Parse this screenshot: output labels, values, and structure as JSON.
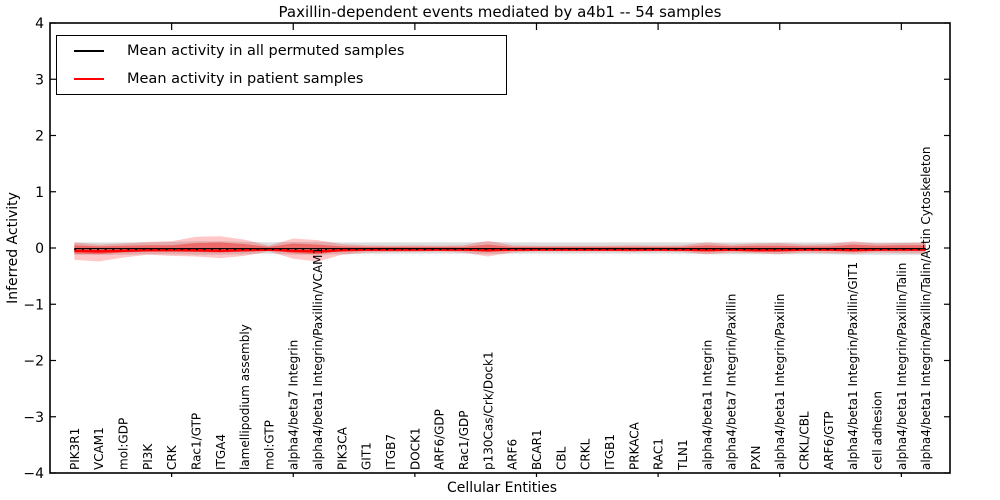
{
  "figure": {
    "title": "Paxillin-dependent events mediated by a4b1 -- 54 samples",
    "background": "#ffffff"
  },
  "chart_data": {
    "type": "line",
    "title": "Paxillin-dependent events mediated by a4b1 -- 54 samples",
    "xlabel": "Cellular Entities",
    "ylabel": "Inferred Activity",
    "xlim": [
      0,
      37
    ],
    "ylim": [
      -4,
      4
    ],
    "yticks": [
      -4,
      -3,
      -2,
      -1,
      0,
      1,
      2,
      3,
      4
    ],
    "xticks": [
      5,
      10,
      15,
      20,
      25,
      30,
      35
    ],
    "grid": false,
    "legend_position": "upper left",
    "legend": [
      {
        "label": "Mean activity in all permuted samples",
        "color": "#000000"
      },
      {
        "label": "Mean activity in patient samples",
        "color": "#ff0000"
      }
    ],
    "categories": [
      "PIK3R1",
      "VCAM1",
      "mol:GDP",
      "PI3K",
      "CRK",
      "Rac1/GTP",
      "ITGA4",
      "lamellipodium assembly",
      "mol:GTP",
      "alpha4/beta7 Integrin",
      "alpha4/beta1 Integrin/Paxillin/VCAM1",
      "PIK3CA",
      "GIT1",
      "ITGB7",
      "DOCK1",
      "ARF6/GDP",
      "Rac1/GDP",
      "p130Cas/Crk/Dock1",
      "ARF6",
      "BCAR1",
      "CBL",
      "CRKL",
      "ITGB1",
      "PRKACA",
      "RAC1",
      "TLN1",
      "alpha4/beta1 Integrin",
      "alpha4/beta7 Integrin/Paxillin",
      "PXN",
      "alpha4/beta1 Integrin/Paxillin",
      "CRKL/CBL",
      "ARF6/GTP",
      "alpha4/beta1 Integrin/Paxillin/GIT1",
      "cell adhesion",
      "alpha4/beta1 Integrin/Paxillin/Talin",
      "alpha4/beta1 Integrin/Paxillin/Talin/Actin Cytoskeleton"
    ],
    "series": [
      {
        "name": "Mean activity in all permuted samples",
        "color": "#000000",
        "line_style": "dotted",
        "values": [
          -0.01,
          -0.01,
          -0.01,
          -0.01,
          -0.01,
          -0.01,
          -0.01,
          -0.01,
          -0.01,
          -0.01,
          -0.01,
          -0.01,
          -0.01,
          -0.01,
          -0.01,
          -0.01,
          -0.01,
          -0.01,
          -0.01,
          -0.01,
          -0.01,
          -0.01,
          -0.01,
          -0.01,
          -0.01,
          -0.01,
          -0.01,
          -0.01,
          -0.01,
          -0.01,
          -0.01,
          -0.01,
          -0.01,
          -0.01,
          -0.01,
          -0.01
        ]
      },
      {
        "name": "Mean activity in patient samples",
        "color": "#ff0000",
        "line_style": "solid",
        "values": [
          -0.05,
          -0.06,
          -0.05,
          -0.04,
          -0.04,
          -0.04,
          -0.05,
          -0.04,
          -0.03,
          -0.05,
          -0.06,
          -0.04,
          -0.03,
          -0.03,
          -0.03,
          -0.03,
          -0.03,
          -0.04,
          -0.03,
          -0.03,
          -0.03,
          -0.03,
          -0.03,
          -0.03,
          -0.03,
          -0.03,
          -0.04,
          -0.03,
          -0.04,
          -0.04,
          -0.03,
          -0.03,
          -0.04,
          -0.03,
          -0.03,
          -0.03
        ]
      }
    ],
    "bands": [
      {
        "name": "permuted-range-band",
        "color": "rgba(130,130,130,0.28)",
        "upper": [
          0.1,
          0.1,
          0.1,
          0.1,
          0.11,
          0.12,
          0.12,
          0.11,
          0.1,
          0.11,
          0.11,
          0.1,
          0.1,
          0.1,
          0.1,
          0.1,
          0.1,
          0.11,
          0.1,
          0.1,
          0.1,
          0.1,
          0.1,
          0.1,
          0.1,
          0.1,
          0.1,
          0.1,
          0.1,
          0.1,
          0.1,
          0.1,
          0.1,
          0.1,
          0.1,
          0.1
        ],
        "lower": [
          -0.12,
          -0.12,
          -0.12,
          -0.11,
          -0.11,
          -0.12,
          -0.12,
          -0.11,
          -0.1,
          -0.12,
          -0.12,
          -0.11,
          -0.1,
          -0.1,
          -0.1,
          -0.1,
          -0.1,
          -0.11,
          -0.1,
          -0.1,
          -0.1,
          -0.1,
          -0.1,
          -0.1,
          -0.1,
          -0.1,
          -0.11,
          -0.11,
          -0.11,
          -0.11,
          -0.11,
          -0.11,
          -0.12,
          -0.12,
          -0.12,
          -0.12
        ]
      },
      {
        "name": "patient-outer-band",
        "color": "rgba(255,0,0,0.22)",
        "upper": [
          0.1,
          0.06,
          0.08,
          0.11,
          0.12,
          0.2,
          0.21,
          0.15,
          0.04,
          0.17,
          0.14,
          0.07,
          0.05,
          0.04,
          0.05,
          0.04,
          0.05,
          0.13,
          0.05,
          0.04,
          0.04,
          0.04,
          0.04,
          0.05,
          0.04,
          0.05,
          0.1,
          0.06,
          0.08,
          0.09,
          0.06,
          0.07,
          0.12,
          0.08,
          0.09,
          0.1
        ],
        "lower": [
          -0.21,
          -0.24,
          -0.17,
          -0.12,
          -0.14,
          -0.15,
          -0.18,
          -0.14,
          -0.06,
          -0.19,
          -0.24,
          -0.12,
          -0.08,
          -0.07,
          -0.07,
          -0.06,
          -0.08,
          -0.15,
          -0.08,
          -0.06,
          -0.06,
          -0.06,
          -0.06,
          -0.07,
          -0.06,
          -0.07,
          -0.11,
          -0.08,
          -0.09,
          -0.11,
          -0.08,
          -0.09,
          -0.1,
          -0.08,
          -0.09,
          -0.1
        ]
      },
      {
        "name": "patient-inner-band",
        "color": "rgba(255,0,0,0.38)",
        "upper": [
          0.05,
          0.03,
          0.04,
          0.05,
          0.05,
          0.09,
          0.1,
          0.07,
          0.02,
          0.08,
          0.06,
          0.03,
          0.02,
          0.02,
          0.02,
          0.02,
          0.02,
          0.06,
          0.02,
          0.02,
          0.02,
          0.02,
          0.02,
          0.02,
          0.02,
          0.02,
          0.05,
          0.03,
          0.04,
          0.04,
          0.03,
          0.03,
          0.06,
          0.04,
          0.05,
          0.05
        ],
        "lower": [
          -0.1,
          -0.11,
          -0.08,
          -0.06,
          -0.06,
          -0.07,
          -0.08,
          -0.06,
          -0.03,
          -0.09,
          -0.11,
          -0.05,
          -0.04,
          -0.03,
          -0.03,
          -0.03,
          -0.04,
          -0.07,
          -0.04,
          -0.03,
          -0.03,
          -0.03,
          -0.03,
          -0.03,
          -0.03,
          -0.03,
          -0.05,
          -0.04,
          -0.04,
          -0.05,
          -0.04,
          -0.04,
          -0.05,
          -0.04,
          -0.04,
          -0.05
        ]
      }
    ]
  }
}
